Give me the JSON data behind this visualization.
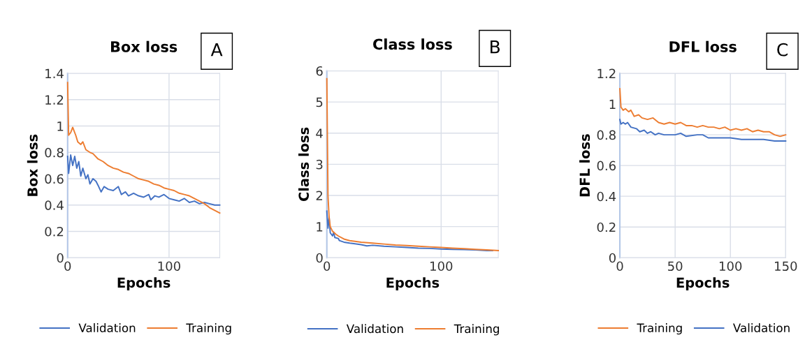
{
  "chart_data": [
    {
      "type": "line",
      "title": "Box loss",
      "xlabel": "Epochs",
      "ylabel": "Box loss",
      "annotations": [
        "A"
      ],
      "xlim": [
        0,
        150
      ],
      "xticks": [
        0,
        100
      ],
      "ylim": [
        0,
        1.4
      ],
      "yticks": [
        0,
        0.2,
        0.4,
        0.6,
        0.8,
        1,
        1.2,
        1.4
      ],
      "grid": true,
      "legend": "bottom",
      "series": [
        {
          "name": "Validation",
          "color": "#4472c4",
          "x": [
            0,
            1,
            3,
            5,
            7,
            9,
            11,
            13,
            15,
            18,
            20,
            22,
            25,
            28,
            30,
            33,
            36,
            40,
            45,
            50,
            53,
            57,
            60,
            65,
            70,
            75,
            80,
            82,
            86,
            90,
            95,
            100,
            105,
            110,
            115,
            120,
            125,
            130,
            135,
            140,
            145,
            150
          ],
          "values": [
            0.77,
            0.64,
            0.78,
            0.7,
            0.77,
            0.68,
            0.73,
            0.62,
            0.68,
            0.6,
            0.63,
            0.56,
            0.6,
            0.58,
            0.55,
            0.5,
            0.54,
            0.52,
            0.51,
            0.54,
            0.48,
            0.5,
            0.47,
            0.49,
            0.47,
            0.46,
            0.48,
            0.44,
            0.47,
            0.46,
            0.48,
            0.45,
            0.44,
            0.43,
            0.45,
            0.42,
            0.43,
            0.41,
            0.42,
            0.41,
            0.4,
            0.4
          ]
        },
        {
          "name": "Training",
          "color": "#ed7d31",
          "x": [
            0,
            1,
            3,
            5,
            8,
            10,
            13,
            15,
            18,
            22,
            25,
            30,
            35,
            40,
            45,
            50,
            55,
            60,
            65,
            70,
            75,
            80,
            85,
            90,
            95,
            100,
            105,
            110,
            115,
            120,
            125,
            130,
            135,
            140,
            145,
            150
          ],
          "values": [
            1.33,
            0.93,
            0.95,
            0.99,
            0.93,
            0.88,
            0.86,
            0.88,
            0.82,
            0.8,
            0.79,
            0.75,
            0.73,
            0.7,
            0.68,
            0.67,
            0.65,
            0.64,
            0.62,
            0.6,
            0.59,
            0.58,
            0.56,
            0.55,
            0.53,
            0.52,
            0.51,
            0.49,
            0.48,
            0.47,
            0.45,
            0.43,
            0.41,
            0.38,
            0.36,
            0.34
          ]
        }
      ]
    },
    {
      "type": "line",
      "title": "Class loss",
      "xlabel": "Epochs",
      "ylabel": "Class loss",
      "annotations": [
        "B"
      ],
      "xlim": [
        0,
        150
      ],
      "xticks": [
        0,
        100
      ],
      "ylim": [
        0,
        6
      ],
      "yticks": [
        0,
        1,
        2,
        3,
        4,
        5,
        6
      ],
      "grid": true,
      "legend": "bottom",
      "series": [
        {
          "name": "Validation",
          "color": "#4472c4",
          "x": [
            0,
            1,
            2,
            3,
            5,
            6,
            7,
            10,
            11,
            15,
            20,
            30,
            35,
            40,
            50,
            60,
            70,
            80,
            90,
            100,
            110,
            120,
            130,
            140,
            145
          ],
          "values": [
            1.5,
            0.95,
            1.3,
            0.8,
            0.7,
            0.82,
            0.65,
            0.62,
            0.55,
            0.5,
            0.47,
            0.42,
            0.38,
            0.4,
            0.37,
            0.35,
            0.33,
            0.31,
            0.3,
            0.28,
            0.27,
            0.26,
            0.25,
            0.23,
            0.23
          ]
        },
        {
          "name": "Training",
          "color": "#ed7d31",
          "x": [
            0,
            1,
            2,
            3,
            5,
            8,
            10,
            15,
            20,
            30,
            40,
            50,
            60,
            70,
            80,
            90,
            100,
            110,
            120,
            130,
            140,
            150
          ],
          "values": [
            5.75,
            2.0,
            1.3,
            1.0,
            0.85,
            0.75,
            0.7,
            0.6,
            0.55,
            0.5,
            0.47,
            0.44,
            0.41,
            0.39,
            0.37,
            0.35,
            0.33,
            0.31,
            0.29,
            0.27,
            0.25,
            0.23
          ]
        }
      ]
    },
    {
      "type": "line",
      "title": "DFL loss",
      "xlabel": "Epochs",
      "ylabel": "DFL loss",
      "annotations": [
        "C"
      ],
      "xlim": [
        0,
        150
      ],
      "xticks": [
        0,
        50,
        100,
        150
      ],
      "ylim": [
        0,
        1.2
      ],
      "yticks": [
        0,
        0.2,
        0.4,
        0.6,
        0.8,
        1,
        1.2
      ],
      "grid": true,
      "legend": "bottom",
      "series": [
        {
          "name": "Training",
          "color": "#ed7d31",
          "x": [
            0,
            1,
            3,
            5,
            8,
            10,
            13,
            17,
            20,
            25,
            30,
            35,
            40,
            45,
            50,
            55,
            60,
            65,
            70,
            75,
            80,
            85,
            90,
            95,
            100,
            105,
            110,
            115,
            120,
            125,
            130,
            135,
            140,
            145,
            150
          ],
          "values": [
            1.1,
            0.98,
            0.96,
            0.97,
            0.95,
            0.96,
            0.92,
            0.93,
            0.91,
            0.9,
            0.91,
            0.88,
            0.87,
            0.88,
            0.87,
            0.88,
            0.86,
            0.86,
            0.85,
            0.86,
            0.85,
            0.85,
            0.84,
            0.85,
            0.83,
            0.84,
            0.83,
            0.84,
            0.82,
            0.83,
            0.82,
            0.82,
            0.8,
            0.79,
            0.8
          ]
        },
        {
          "name": "Validation",
          "color": "#4472c4",
          "x": [
            0,
            1,
            3,
            5,
            7,
            10,
            15,
            18,
            22,
            25,
            28,
            32,
            35,
            40,
            50,
            55,
            60,
            70,
            75,
            80,
            90,
            100,
            110,
            120,
            130,
            140,
            150
          ],
          "values": [
            0.9,
            0.87,
            0.88,
            0.87,
            0.88,
            0.85,
            0.84,
            0.82,
            0.83,
            0.81,
            0.82,
            0.8,
            0.81,
            0.8,
            0.8,
            0.81,
            0.79,
            0.8,
            0.8,
            0.78,
            0.78,
            0.78,
            0.77,
            0.77,
            0.77,
            0.76,
            0.76
          ]
        }
      ]
    }
  ]
}
